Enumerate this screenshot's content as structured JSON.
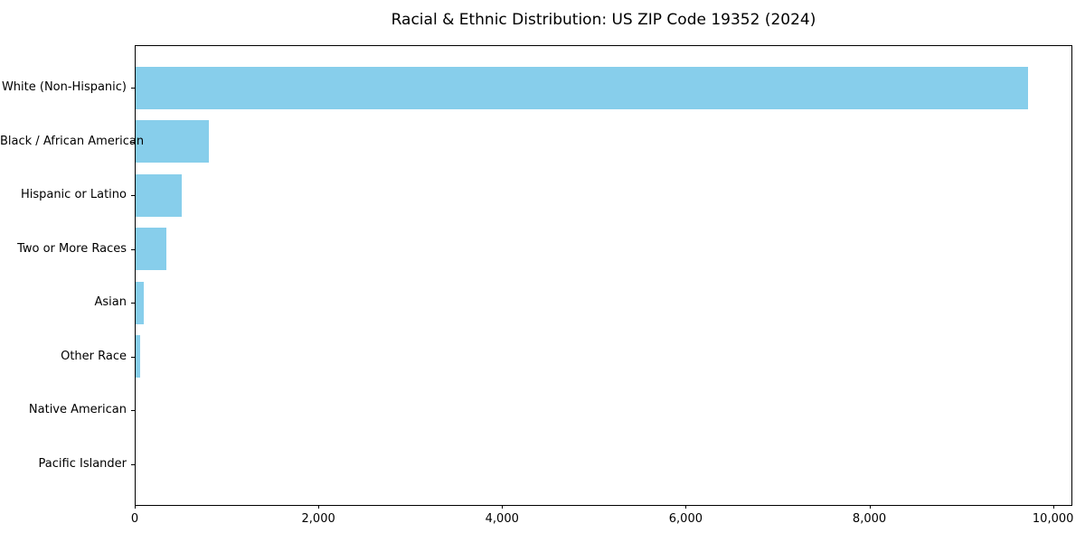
{
  "figure": {
    "background": "#ffffff",
    "text_color": "#000000",
    "spine_color": "#000000"
  },
  "chart_data": {
    "type": "bar",
    "orientation": "horizontal",
    "title": "Racial & Ethnic Distribution: US ZIP Code 19352 (2024)",
    "xlabel": "",
    "ylabel": "",
    "categories": [
      "White (Non-Hispanic)",
      "Black / African American",
      "Hispanic or Latino",
      "Two or More Races",
      "Asian",
      "Other Race",
      "Native American",
      "Pacific Islander"
    ],
    "values": [
      9715,
      800,
      500,
      330,
      90,
      50,
      0,
      0
    ],
    "bar_color": "#87CEEB",
    "xlim": [
      0,
      10210
    ],
    "xticks": [
      0,
      2000,
      4000,
      6000,
      8000,
      10000
    ],
    "xtick_labels": [
      "0",
      "2,000",
      "4,000",
      "6,000",
      "8,000",
      "10,000"
    ],
    "grid": false,
    "legend": "none"
  }
}
